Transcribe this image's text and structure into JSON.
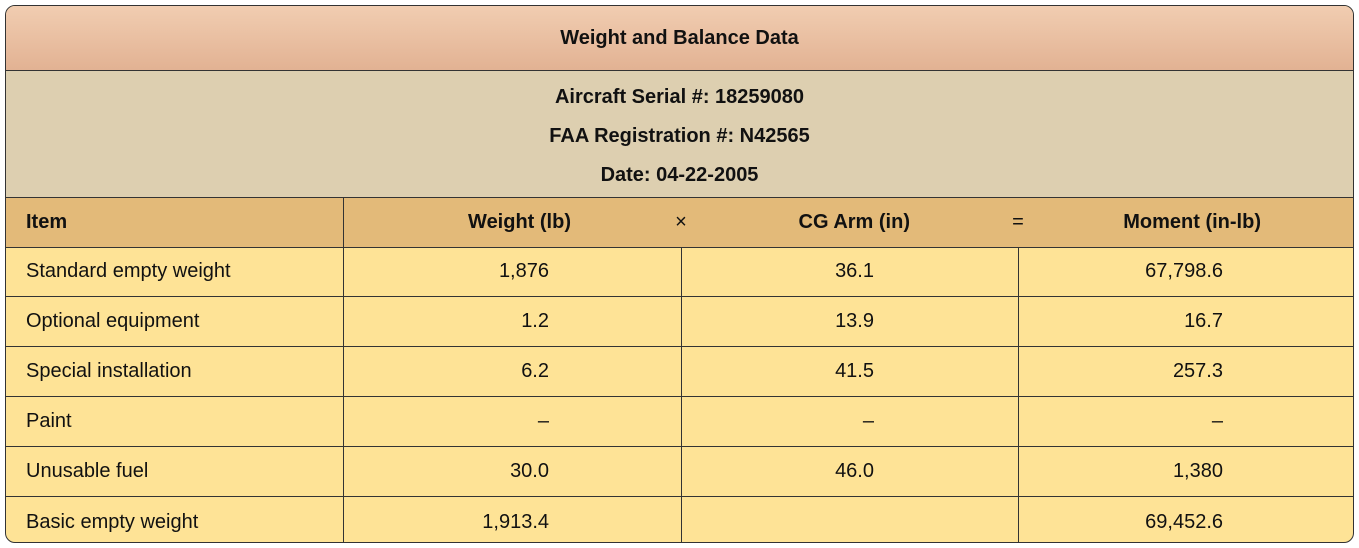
{
  "header": {
    "title": "Weight and Balance Data"
  },
  "info": [
    "Aircraft Serial #: 18259080",
    "FAA Registration #: N42565",
    "Date: 04-22-2005"
  ],
  "table": {
    "columns": [
      "Item",
      "Weight (lb)",
      "CG Arm (in)",
      "Moment (in-lb)"
    ],
    "operators": [
      "×",
      "="
    ],
    "rows": [
      [
        "Standard empty weight",
        "1,876",
        "36.1",
        "67,798.6"
      ],
      [
        "Optional equipment",
        "1.2",
        "13.9",
        "16.7"
      ],
      [
        "Special installation",
        "6.2",
        "41.5",
        "257.3"
      ],
      [
        "Paint",
        "–",
        "–",
        "–"
      ],
      [
        "Unusable fuel",
        "30.0",
        "46.0",
        "1,380"
      ],
      [
        "Basic empty weight",
        "1,913.4",
        null,
        "69,452.6"
      ]
    ]
  }
}
